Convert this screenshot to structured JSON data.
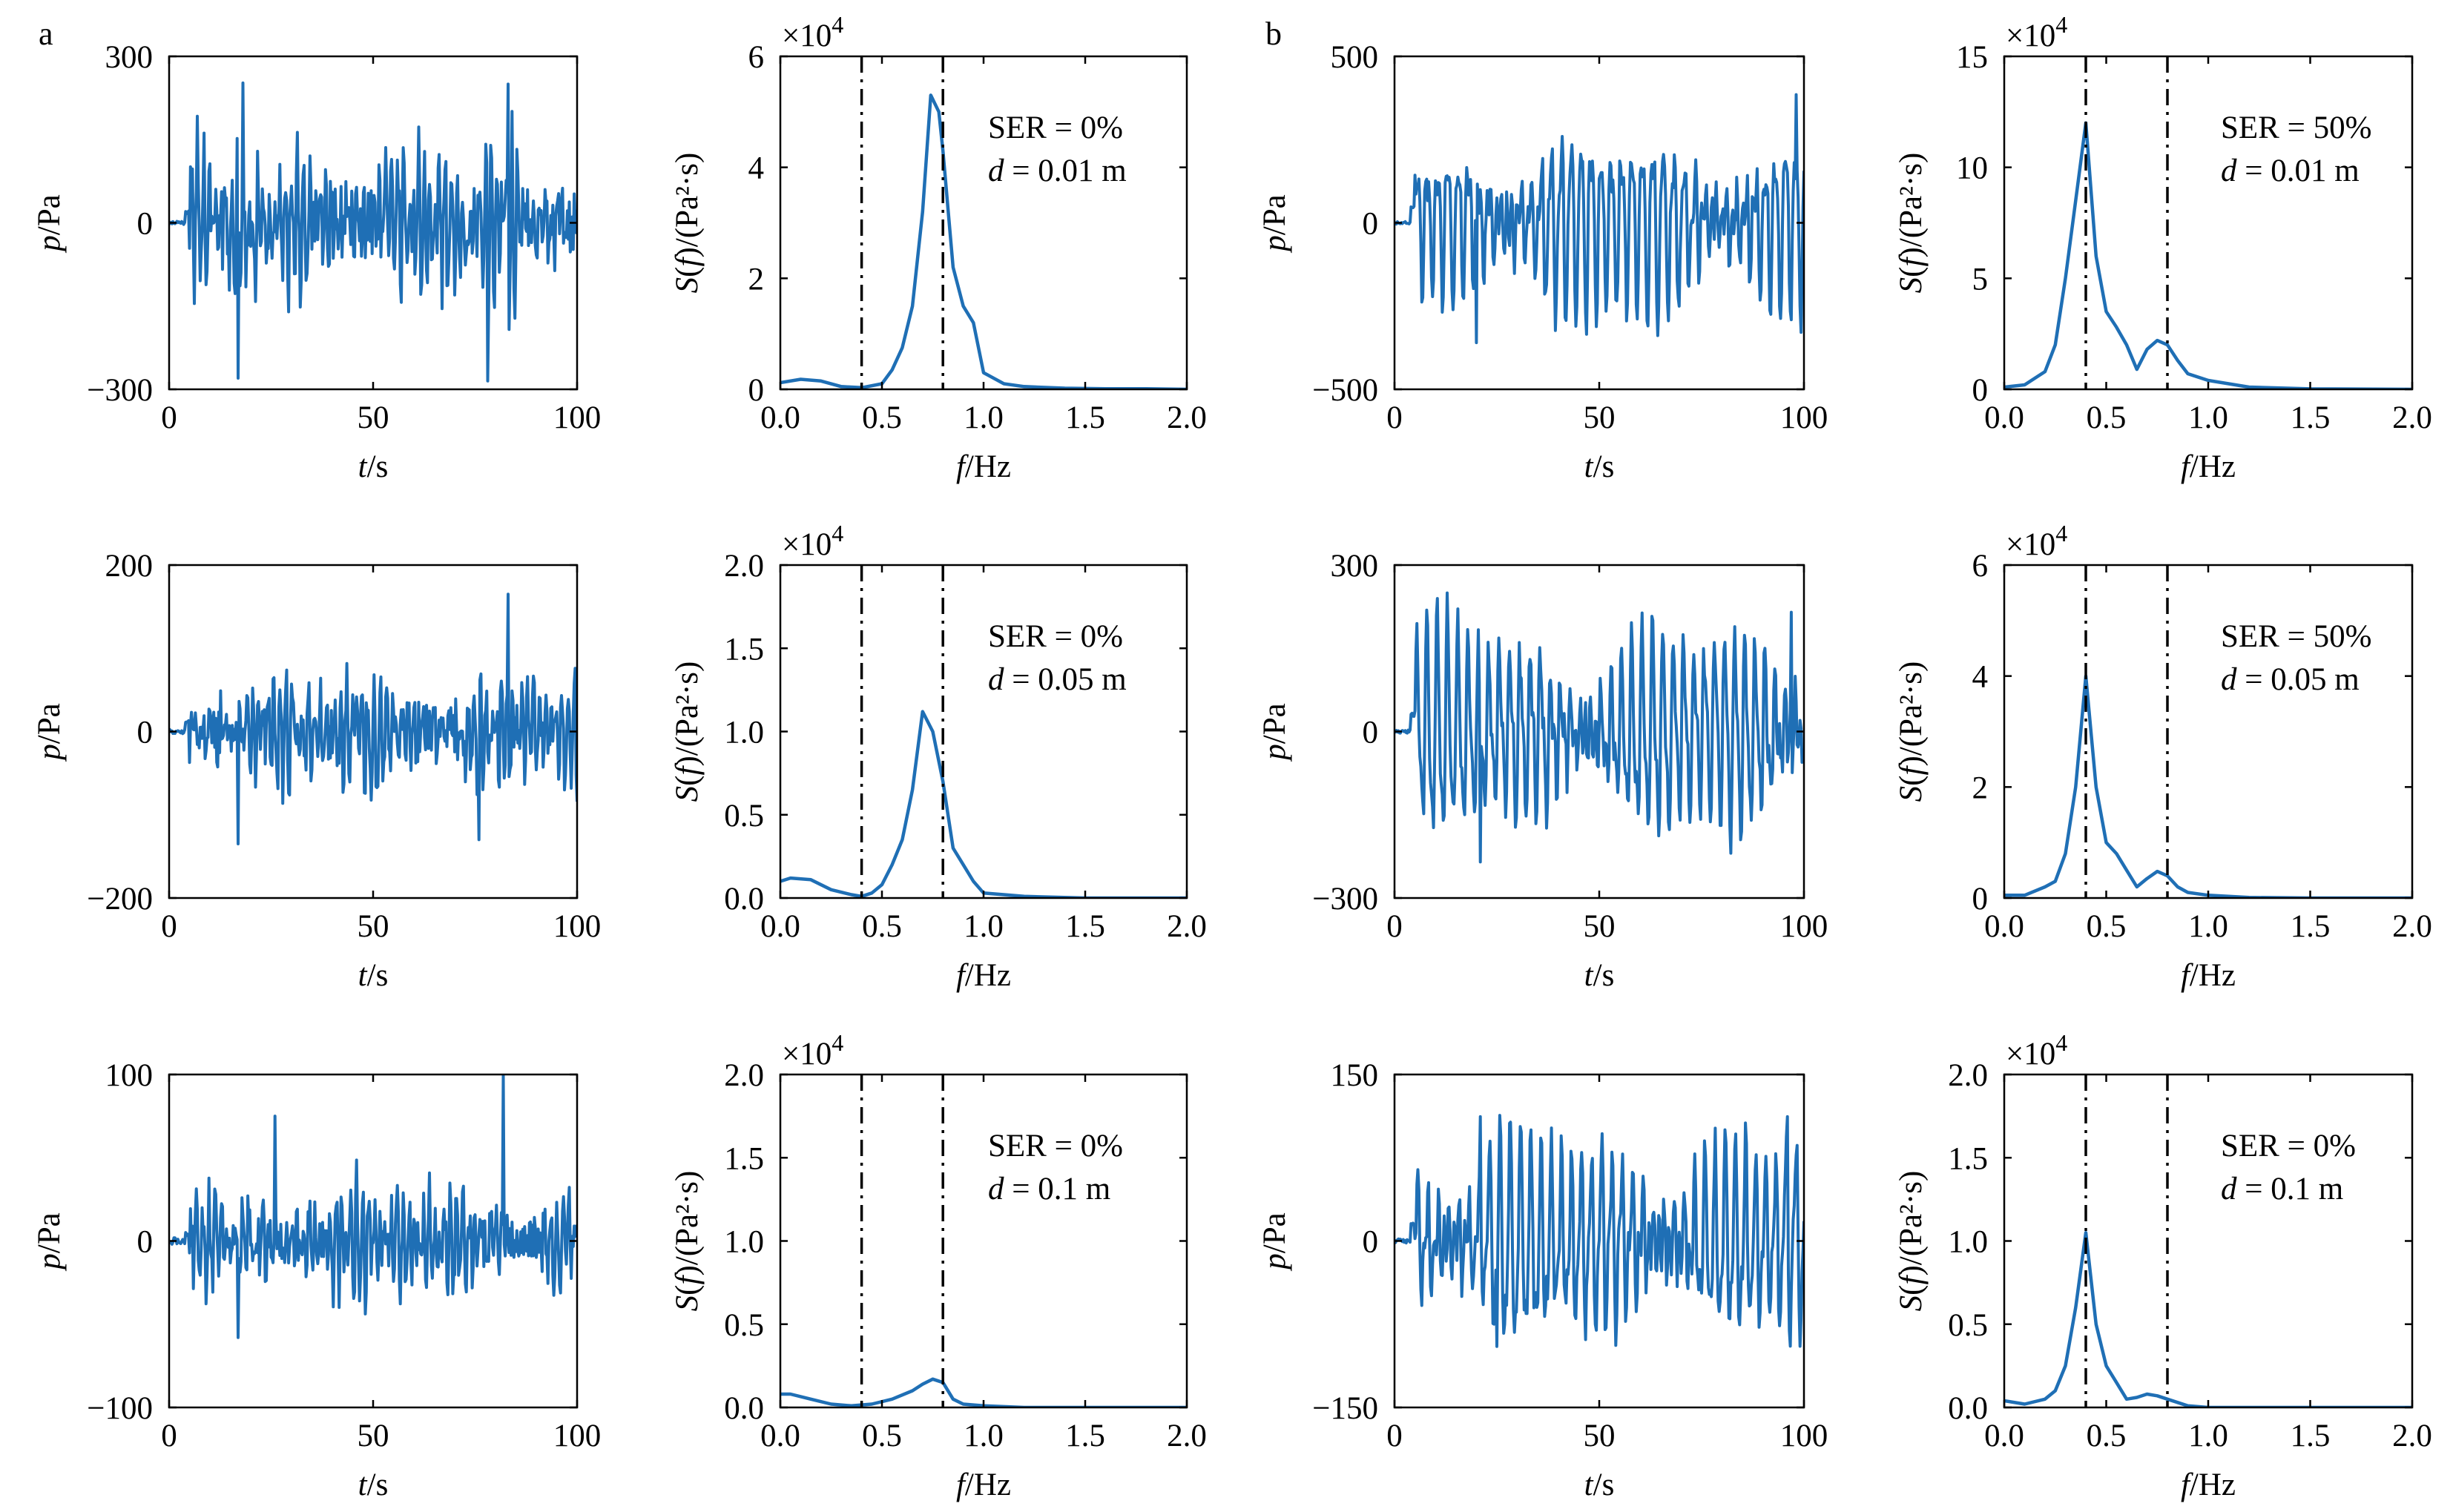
{
  "panel_labels": [
    "a",
    "b"
  ],
  "colors": {
    "series": "#1f6fb5",
    "axis": "#000000",
    "marker_line": "#000000"
  },
  "chart_data": [
    {
      "id": "a-r1-time",
      "type": "line",
      "xlabel": "t/s",
      "ylabel": "p/Pa",
      "xlim": [
        0,
        100
      ],
      "ylim": [
        -300,
        300
      ],
      "xticks": [
        0,
        50,
        100
      ],
      "yticks": [
        -300,
        0,
        300
      ],
      "ytick_labels": [
        "−300",
        "0",
        "300"
      ],
      "signal": {
        "amp": 95,
        "start": 5,
        "quiet": 3,
        "kind": "mixed",
        "peaks": [
          [
            17,
            -280
          ],
          [
            78,
            -285
          ],
          [
            83,
            250
          ],
          [
            18,
            252
          ]
        ]
      }
    },
    {
      "id": "a-r1-psd",
      "type": "line",
      "xlabel": "f/Hz",
      "ylabel": "S(f)/(Pa²·s)",
      "xlim": [
        0,
        2.0
      ],
      "ylim": [
        0,
        6
      ],
      "xticks": [
        0,
        0.5,
        1.0,
        1.5,
        2.0
      ],
      "xtick_labels": [
        "0.0",
        "0.5",
        "1.0",
        "1.5",
        "2.0"
      ],
      "yticks": [
        0,
        2,
        4,
        6
      ],
      "ytick_labels": [
        "0",
        "2",
        "4",
        "6"
      ],
      "multiplier": "×10",
      "multiplier_exp": "4",
      "vlines": [
        0.4,
        0.8
      ],
      "annotation": {
        "ser": "SER = 0%",
        "d_var": "d",
        "d_value": " = 0.01 m"
      },
      "x": [
        0,
        0.1,
        0.2,
        0.3,
        0.4,
        0.5,
        0.55,
        0.6,
        0.65,
        0.7,
        0.74,
        0.78,
        0.8,
        0.85,
        0.9,
        0.95,
        1.0,
        1.1,
        1.2,
        1.4,
        1.6,
        1.8,
        2.0
      ],
      "y": [
        0.12,
        0.18,
        0.15,
        0.05,
        0.03,
        0.1,
        0.35,
        0.75,
        1.5,
        3.2,
        5.3,
        5.0,
        4.3,
        2.2,
        1.5,
        1.2,
        0.3,
        0.1,
        0.05,
        0.02,
        0.01,
        0.01,
        0.0
      ]
    },
    {
      "id": "b-r1-time",
      "type": "line",
      "xlabel": "t/s",
      "ylabel": "p/Pa",
      "xlim": [
        0,
        100
      ],
      "ylim": [
        -500,
        500
      ],
      "xticks": [
        0,
        50,
        100
      ],
      "yticks": [
        -500,
        0,
        500
      ],
      "ytick_labels": [
        "−500",
        "0",
        "500"
      ],
      "signal": {
        "amp": 230,
        "start": 5,
        "quiet": 4,
        "kind": "regular",
        "peaks": [
          [
            98,
            385
          ],
          [
            20,
            -360
          ]
        ]
      }
    },
    {
      "id": "b-r1-psd",
      "type": "line",
      "xlabel": "f/Hz",
      "ylabel": "S(f)/(Pa²·s)",
      "xlim": [
        0,
        2.0
      ],
      "ylim": [
        0,
        15
      ],
      "xticks": [
        0,
        0.5,
        1.0,
        1.5,
        2.0
      ],
      "xtick_labels": [
        "0.0",
        "0.5",
        "1.0",
        "1.5",
        "2.0"
      ],
      "yticks": [
        0,
        5,
        10,
        15
      ],
      "ytick_labels": [
        "0",
        "5",
        "10",
        "15"
      ],
      "multiplier": "×10",
      "multiplier_exp": "4",
      "vlines": [
        0.4,
        0.8
      ],
      "annotation": {
        "ser": "SER = 50%",
        "d_var": "d",
        "d_value": " = 0.01 m"
      },
      "x": [
        0,
        0.1,
        0.2,
        0.25,
        0.3,
        0.35,
        0.4,
        0.45,
        0.5,
        0.55,
        0.6,
        0.65,
        0.7,
        0.75,
        0.8,
        0.85,
        0.9,
        1.0,
        1.2,
        1.5,
        2.0
      ],
      "y": [
        0.1,
        0.2,
        0.8,
        2.0,
        5.0,
        8.5,
        12.0,
        6.0,
        3.5,
        2.8,
        2.0,
        0.9,
        1.8,
        2.2,
        2.0,
        1.3,
        0.7,
        0.4,
        0.1,
        0.02,
        0.0
      ]
    },
    {
      "id": "a-r2-time",
      "type": "line",
      "xlabel": "t/s",
      "ylabel": "p/Pa",
      "xlim": [
        0,
        100
      ],
      "ylim": [
        -200,
        200
      ],
      "xticks": [
        0,
        50,
        100
      ],
      "yticks": [
        -200,
        0,
        200
      ],
      "ytick_labels": [
        "−200",
        "0",
        "200"
      ],
      "signal": {
        "amp": 50,
        "start": 5,
        "quiet": 3,
        "kind": "mixed",
        "peaks": [
          [
            83,
            165
          ],
          [
            17,
            -135
          ],
          [
            76,
            -130
          ]
        ]
      }
    },
    {
      "id": "a-r2-psd",
      "type": "line",
      "xlabel": "f/Hz",
      "ylabel": "S(f)/(Pa²·s)",
      "xlim": [
        0,
        2.0
      ],
      "ylim": [
        0,
        2.0
      ],
      "xticks": [
        0,
        0.5,
        1.0,
        1.5,
        2.0
      ],
      "xtick_labels": [
        "0.0",
        "0.5",
        "1.0",
        "1.5",
        "2.0"
      ],
      "yticks": [
        0,
        0.5,
        1.0,
        1.5,
        2.0
      ],
      "ytick_labels": [
        "0.0",
        "0.5",
        "1.0",
        "1.5",
        "2.0"
      ],
      "multiplier": "×10",
      "multiplier_exp": "4",
      "vlines": [
        0.4,
        0.8
      ],
      "annotation": {
        "ser": "SER = 0%",
        "d_var": "d",
        "d_value": " = 0.05 m"
      },
      "x": [
        0,
        0.05,
        0.15,
        0.25,
        0.35,
        0.4,
        0.45,
        0.5,
        0.55,
        0.6,
        0.65,
        0.7,
        0.75,
        0.8,
        0.85,
        0.9,
        0.95,
        1.0,
        1.2,
        1.5,
        2.0
      ],
      "y": [
        0.1,
        0.12,
        0.11,
        0.05,
        0.02,
        0.01,
        0.03,
        0.08,
        0.2,
        0.35,
        0.65,
        1.12,
        1.0,
        0.7,
        0.3,
        0.2,
        0.1,
        0.03,
        0.01,
        0.0,
        0.0
      ]
    },
    {
      "id": "b-r2-time",
      "type": "line",
      "xlabel": "t/s",
      "ylabel": "p/Pa",
      "xlim": [
        0,
        100
      ],
      "ylim": [
        -300,
        300
      ],
      "xticks": [
        0,
        50,
        100
      ],
      "yticks": [
        -300,
        0,
        300
      ],
      "ytick_labels": [
        "−300",
        "0",
        "300"
      ],
      "signal": {
        "amp": 150,
        "start": 5,
        "quiet": 3,
        "kind": "regular",
        "peaks": [
          [
            97,
            215
          ],
          [
            21,
            -235
          ]
        ]
      }
    },
    {
      "id": "b-r2-psd",
      "type": "line",
      "xlabel": "f/Hz",
      "ylabel": "S(f)/(Pa²·s)",
      "xlim": [
        0,
        2.0
      ],
      "ylim": [
        0,
        6
      ],
      "xticks": [
        0,
        0.5,
        1.0,
        1.5,
        2.0
      ],
      "xtick_labels": [
        "0.0",
        "0.5",
        "1.0",
        "1.5",
        "2.0"
      ],
      "yticks": [
        0,
        2,
        4,
        6
      ],
      "ytick_labels": [
        "0",
        "2",
        "4",
        "6"
      ],
      "multiplier": "×10",
      "multiplier_exp": "4",
      "vlines": [
        0.4,
        0.8
      ],
      "annotation": {
        "ser": "SER = 50%",
        "d_var": "d",
        "d_value": " = 0.05 m"
      },
      "x": [
        0,
        0.1,
        0.2,
        0.25,
        0.3,
        0.35,
        0.4,
        0.45,
        0.5,
        0.55,
        0.6,
        0.65,
        0.7,
        0.75,
        0.8,
        0.85,
        0.9,
        1.0,
        1.2,
        1.5,
        2.0
      ],
      "y": [
        0.05,
        0.05,
        0.2,
        0.3,
        0.8,
        2.0,
        4.0,
        2.0,
        1.0,
        0.8,
        0.5,
        0.2,
        0.35,
        0.48,
        0.4,
        0.2,
        0.1,
        0.05,
        0.01,
        0.0,
        0.0
      ]
    },
    {
      "id": "a-r3-time",
      "type": "line",
      "xlabel": "t/s",
      "ylabel": "p/Pa",
      "xlim": [
        0,
        100
      ],
      "ylim": [
        -100,
        100
      ],
      "xticks": [
        0,
        50,
        100
      ],
      "yticks": [
        -100,
        0,
        100
      ],
      "ytick_labels": [
        "−100",
        "0",
        "100"
      ],
      "signal": {
        "amp": 22,
        "start": 5,
        "quiet": 2,
        "kind": "mixed",
        "peaks": [
          [
            82,
            100
          ],
          [
            17,
            -58
          ],
          [
            26,
            75
          ]
        ]
      }
    },
    {
      "id": "a-r3-psd",
      "type": "line",
      "xlabel": "f/Hz",
      "ylabel": "S(f)/(Pa²·s)",
      "xlim": [
        0,
        2.0
      ],
      "ylim": [
        0,
        2.0
      ],
      "xticks": [
        0,
        0.5,
        1.0,
        1.5,
        2.0
      ],
      "xtick_labels": [
        "0.0",
        "0.5",
        "1.0",
        "1.5",
        "2.0"
      ],
      "yticks": [
        0,
        0.5,
        1.0,
        1.5,
        2.0
      ],
      "ytick_labels": [
        "0.0",
        "0.5",
        "1.0",
        "1.5",
        "2.0"
      ],
      "multiplier": "×10",
      "multiplier_exp": "4",
      "vlines": [
        0.4,
        0.8
      ],
      "annotation": {
        "ser": "SER = 0%",
        "d_var": "d",
        "d_value": " = 0.1 m"
      },
      "x": [
        0,
        0.05,
        0.15,
        0.25,
        0.35,
        0.45,
        0.55,
        0.65,
        0.7,
        0.75,
        0.8,
        0.85,
        0.9,
        1.0,
        1.2,
        1.5,
        2.0
      ],
      "y": [
        0.08,
        0.08,
        0.05,
        0.02,
        0.01,
        0.02,
        0.05,
        0.1,
        0.14,
        0.17,
        0.15,
        0.05,
        0.02,
        0.01,
        0.0,
        0.0,
        0.0
      ]
    },
    {
      "id": "b-r3-time",
      "type": "line",
      "xlabel": "t/s",
      "ylabel": "p/Pa",
      "xlim": [
        0,
        100
      ],
      "ylim": [
        -150,
        150
      ],
      "xticks": [
        0,
        50,
        100
      ],
      "yticks": [
        -150,
        0,
        150
      ],
      "ytick_labels": [
        "−150",
        "0",
        "150"
      ],
      "signal": {
        "amp": 75,
        "start": 5,
        "quiet": 2,
        "kind": "regular",
        "peaks": [
          [
            25,
            -95
          ],
          [
            21,
            112
          ],
          [
            96,
            112
          ]
        ]
      }
    },
    {
      "id": "b-r3-psd",
      "type": "line",
      "xlabel": "f/Hz",
      "ylabel": "S(f)/(Pa²·s)",
      "xlim": [
        0,
        2.0
      ],
      "ylim": [
        0,
        2.0
      ],
      "xticks": [
        0,
        0.5,
        1.0,
        1.5,
        2.0
      ],
      "xtick_labels": [
        "0.0",
        "0.5",
        "1.0",
        "1.5",
        "2.0"
      ],
      "yticks": [
        0,
        0.5,
        1.0,
        1.5,
        2.0
      ],
      "ytick_labels": [
        "0.0",
        "0.5",
        "1.0",
        "1.5",
        "2.0"
      ],
      "multiplier": "×10",
      "multiplier_exp": "4",
      "vlines": [
        0.4,
        0.8
      ],
      "annotation": {
        "ser": "SER = 0%",
        "d_var": "d",
        "d_value": " = 0.1 m"
      },
      "x": [
        0,
        0.1,
        0.2,
        0.25,
        0.3,
        0.35,
        0.4,
        0.45,
        0.5,
        0.55,
        0.6,
        0.65,
        0.7,
        0.75,
        0.8,
        0.85,
        0.9,
        1.0,
        1.2,
        1.5,
        2.0
      ],
      "y": [
        0.04,
        0.02,
        0.05,
        0.1,
        0.25,
        0.6,
        1.05,
        0.5,
        0.25,
        0.15,
        0.05,
        0.06,
        0.08,
        0.07,
        0.05,
        0.03,
        0.01,
        0.0,
        0.0,
        0.0,
        0.0
      ]
    }
  ]
}
